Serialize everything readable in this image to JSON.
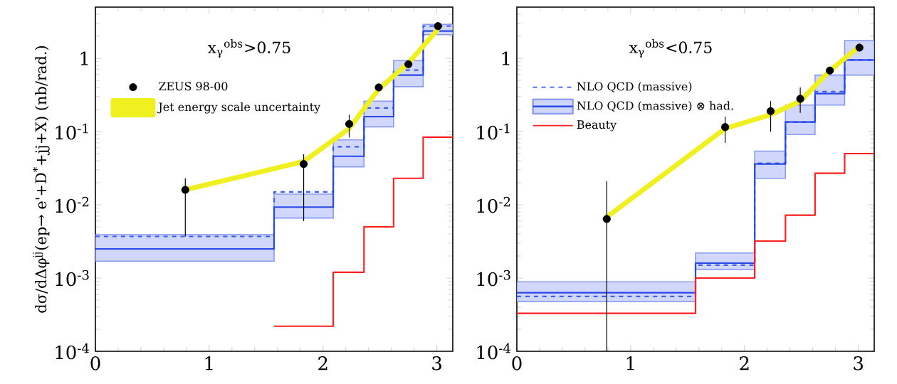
{
  "chart_data": [
    {
      "type": "step",
      "ylabel": "dσ/dΔφ$^{jj}$(ep→ e'+D$^{*}$+jj+X) (nb/rad.)",
      "annotations": [
        "x$_{γ}$$^{obs}$>0.75"
      ],
      "log": "y",
      "legend": "top left",
      "xlim": [
        0,
        3.14
      ],
      "ylim": [
        0.0001,
        5
      ],
      "xticks": [
        0,
        1,
        2,
        3
      ],
      "yticks": [
        {
          "value": 0.0001,
          "label": "10$^{-4}$"
        },
        {
          "value": 0.001,
          "label": "10$^{-3}$"
        },
        {
          "value": 0.01,
          "label": "10$^{-2}$"
        },
        {
          "value": 0.1,
          "label": "10$^{-1}$"
        },
        1
      ],
      "series": [
        {
          "type": "scatter",
          "name": "ZEUS 98-00",
          "color": "#000000",
          "marker": "circle",
          "x": [
            0.79,
            1.83,
            2.23,
            2.49,
            2.75,
            3.01
          ],
          "values": [
            0.016,
            0.036,
            0.127,
            0.4,
            0.83,
            2.75
          ],
          "errors": [
            [
              0.0037,
              0.023
            ],
            [
              0.006,
              0.049
            ],
            [
              0.083,
              0.17
            ],
            null,
            null,
            null
          ]
        },
        {
          "type": "line",
          "name": "Jet energy scale uncertainty",
          "color": "#f0f020",
          "x": [
            0.79,
            1.83,
            2.23,
            2.49,
            2.75,
            3.01
          ],
          "values": [
            0.016,
            0.039,
            0.11,
            0.38,
            0.86,
            2.5
          ]
        },
        {
          "color": "#3a5cf0",
          "line_style": "dashed",
          "x": [
            0,
            1.57,
            2.09,
            2.36,
            2.62,
            2.88,
            3.14
          ],
          "values": [
            0.0037,
            0.015,
            0.062,
            0.21,
            0.69,
            2.75,
            2.75
          ]
        },
        {
          "color": "#2848e8",
          "x": [
            0,
            1.57,
            2.09,
            2.36,
            2.62,
            2.88,
            3.14
          ],
          "values": [
            0.0025,
            0.0093,
            0.046,
            0.16,
            0.59,
            2.36,
            2.36
          ],
          "lower": [
            0.0017,
            0.0066,
            0.033,
            0.116,
            0.41,
            2.1,
            2.1
          ],
          "upper": [
            0.0039,
            0.014,
            0.077,
            0.26,
            0.93,
            2.9,
            2.9
          ]
        },
        {
          "color": "#ff2020",
          "x": [
            1.57,
            2.09,
            2.36,
            2.62,
            2.88,
            3.14
          ],
          "values": [
            0.00022,
            0.0012,
            0.005,
            0.023,
            0.084,
            0.084
          ]
        }
      ]
    },
    {
      "type": "step",
      "annotations": [
        "x$_{γ}$$^{obs}$<0.75"
      ],
      "log": "y",
      "legend": "top left",
      "xlim": [
        0,
        3.14
      ],
      "ylim": [
        0.0001,
        5
      ],
      "xticks": [
        0,
        1,
        2,
        3
      ],
      "yticks": [
        {
          "value": 0.0001,
          "label": "10$^{-4}$"
        },
        {
          "value": 0.001,
          "label": "10$^{-3}$"
        },
        {
          "value": 0.01,
          "label": "10$^{-2}$"
        },
        {
          "value": 0.1,
          "label": "10$^{-1}$"
        },
        1
      ],
      "series": [
        {
          "type": "scatter",
          "color": "#000000",
          "marker": "circle",
          "x": [
            0.79,
            1.83,
            2.23,
            2.49,
            2.75,
            3.01
          ],
          "values": [
            0.0064,
            0.115,
            0.19,
            0.28,
            0.68,
            1.4
          ],
          "errors": [
            [
              0.0001,
              0.021
            ],
            [
              0.07,
              0.16
            ],
            [
              0.1,
              0.26
            ],
            [
              0.18,
              0.4
            ],
            null,
            null
          ]
        },
        {
          "type": "line",
          "color": "#f0f020",
          "x": [
            0.79,
            1.83,
            2.23,
            2.49,
            2.75,
            3.01
          ],
          "values": [
            0.0068,
            0.11,
            0.17,
            0.26,
            0.68,
            1.45
          ]
        },
        {
          "name": "NLO QCD (massive)",
          "color": "#3a5cf0",
          "line_style": "dashed",
          "x": [
            0,
            1.57,
            2.09,
            2.36,
            2.62,
            2.88,
            3.14
          ],
          "values": [
            0.00056,
            0.0015,
            0.037,
            0.135,
            0.35,
            0.95,
            0.95
          ]
        },
        {
          "name": "NLO QCD (massive) ⊗ had.",
          "color": "#2848e8",
          "x": [
            0,
            1.57,
            2.09,
            2.36,
            2.62,
            2.88,
            3.14
          ],
          "values": [
            0.00063,
            0.0016,
            0.036,
            0.135,
            0.33,
            0.95,
            0.95
          ],
          "lower": [
            0.00048,
            0.0013,
            0.023,
            0.091,
            0.23,
            0.59,
            0.59
          ],
          "upper": [
            0.00089,
            0.0022,
            0.054,
            0.23,
            0.59,
            1.75,
            1.75
          ]
        },
        {
          "name": "Beauty",
          "color": "#ff2020",
          "x": [
            0,
            1.57,
            2.09,
            2.36,
            2.62,
            2.88,
            3.14
          ],
          "values": [
            0.00033,
            0.001,
            0.0032,
            0.0072,
            0.027,
            0.05,
            0.05
          ]
        }
      ]
    }
  ]
}
